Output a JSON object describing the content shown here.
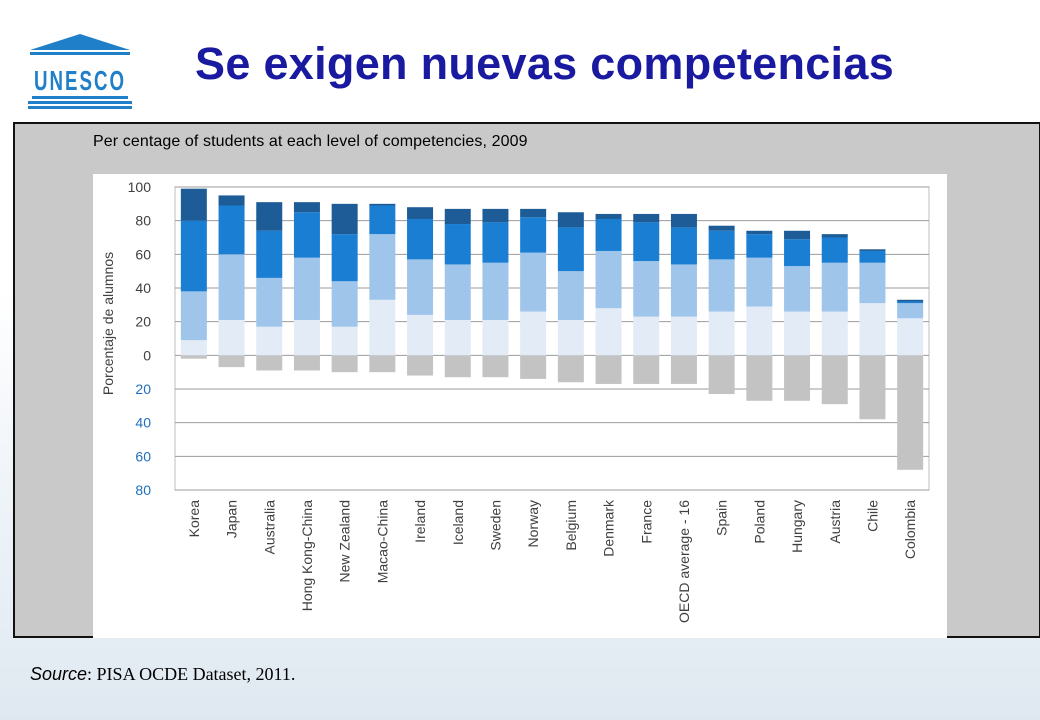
{
  "header": {
    "logo_text": "UNESCO",
    "title": "Se exigen nuevas competencias"
  },
  "source": {
    "label": "Source",
    "text": ": PISA OCDE Dataset, 2011."
  },
  "colors": {
    "level1": "#e3ecf6",
    "level2": "#9fc5ea",
    "level3": "#1a7fd3",
    "level4": "#1d5c97",
    "below": "#c3c3c3",
    "title": "#1a1aa0",
    "negative_ticks": "#1f6fc0"
  },
  "chart_data": {
    "type": "bar",
    "title": "Per centage of students at each level of competencies, 2009",
    "ylabel": "Porcentaje de alumnos",
    "ylim": [
      -80,
      100
    ],
    "yticks": [
      {
        "value": 100,
        "label": "100"
      },
      {
        "value": 80,
        "label": "80"
      },
      {
        "value": 60,
        "label": "60"
      },
      {
        "value": 40,
        "label": "40"
      },
      {
        "value": 20,
        "label": "20"
      },
      {
        "value": 0,
        "label": "0"
      },
      {
        "value": -20,
        "label": "20"
      },
      {
        "value": -40,
        "label": "40"
      },
      {
        "value": -60,
        "label": "60"
      },
      {
        "value": -80,
        "label": "80"
      }
    ],
    "grid": true,
    "stacked": true,
    "categories": [
      "Korea",
      "Japan",
      "Australia",
      "Hong Kong-China",
      "New Zealand",
      "Macao-China",
      "Ireland",
      "Iceland",
      "Sweden",
      "Norway",
      "Belgium",
      "Denmark",
      "France",
      "OECD average - 16",
      "Spain",
      "Poland",
      "Hungary",
      "Austria",
      "Chile",
      "Colombia"
    ],
    "tops": [
      [
        9,
        38,
        80,
        99
      ],
      [
        21,
        60,
        89,
        95
      ],
      [
        17,
        46,
        74,
        91
      ],
      [
        21,
        58,
        85,
        91
      ],
      [
        17,
        44,
        72,
        90
      ],
      [
        33,
        72,
        89,
        90
      ],
      [
        24,
        57,
        81,
        88
      ],
      [
        21,
        54,
        78,
        87
      ],
      [
        21,
        55,
        79,
        87
      ],
      [
        26,
        61,
        82,
        87
      ],
      [
        21,
        50,
        76,
        85
      ],
      [
        28,
        62,
        81,
        84
      ],
      [
        23,
        56,
        79,
        84
      ],
      [
        23,
        54,
        76,
        84
      ],
      [
        26,
        57,
        74,
        77
      ],
      [
        29,
        58,
        72,
        74
      ],
      [
        26,
        53,
        69,
        74
      ],
      [
        26,
        55,
        70,
        72
      ],
      [
        31,
        55,
        62,
        63
      ],
      [
        22,
        31,
        32,
        33
      ]
    ],
    "below": [
      -2,
      -7,
      -9,
      -9,
      -10,
      -10,
      -12,
      -13,
      -13,
      -14,
      -16,
      -17,
      -17,
      -17,
      -23,
      -27,
      -27,
      -29,
      -38,
      -68
    ]
  }
}
